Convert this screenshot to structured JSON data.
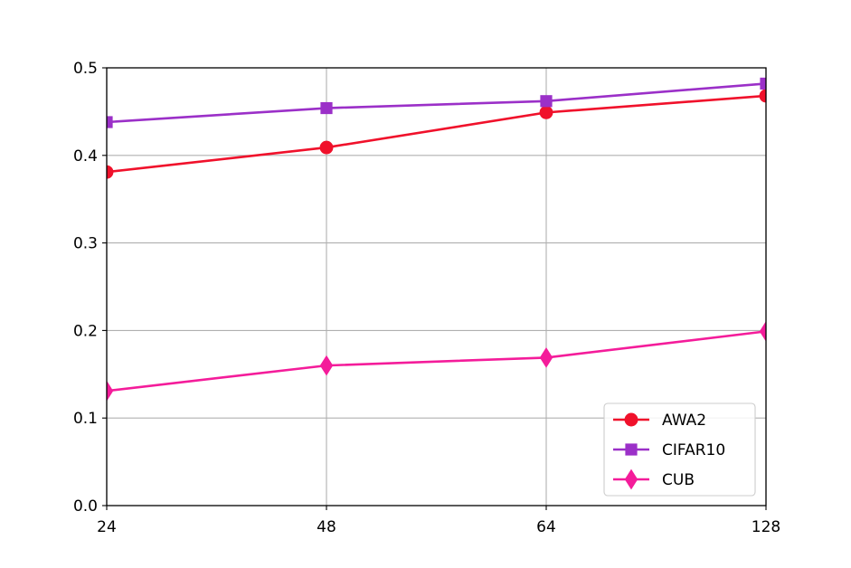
{
  "chart_data": {
    "type": "line",
    "title": "",
    "xlabel": "",
    "ylabel": "",
    "categories": [
      "24",
      "48",
      "64",
      "128"
    ],
    "ylim": [
      0,
      0.5
    ],
    "yticks": [
      "0.0",
      "0.1",
      "0.2",
      "0.3",
      "0.4",
      "0.5"
    ],
    "grid": true,
    "legend_position": "lower-right",
    "series": [
      {
        "name": "AWA2",
        "values": [
          0.381,
          0.409,
          0.449,
          0.468
        ],
        "color": "#f0112b",
        "marker": "circle"
      },
      {
        "name": "CIFAR10",
        "values": [
          0.438,
          0.454,
          0.462,
          0.482
        ],
        "color": "#9b30c8",
        "marker": "square"
      },
      {
        "name": "CUB",
        "values": [
          0.131,
          0.16,
          0.169,
          0.199
        ],
        "color": "#f41c9a",
        "marker": "diamond"
      }
    ]
  }
}
